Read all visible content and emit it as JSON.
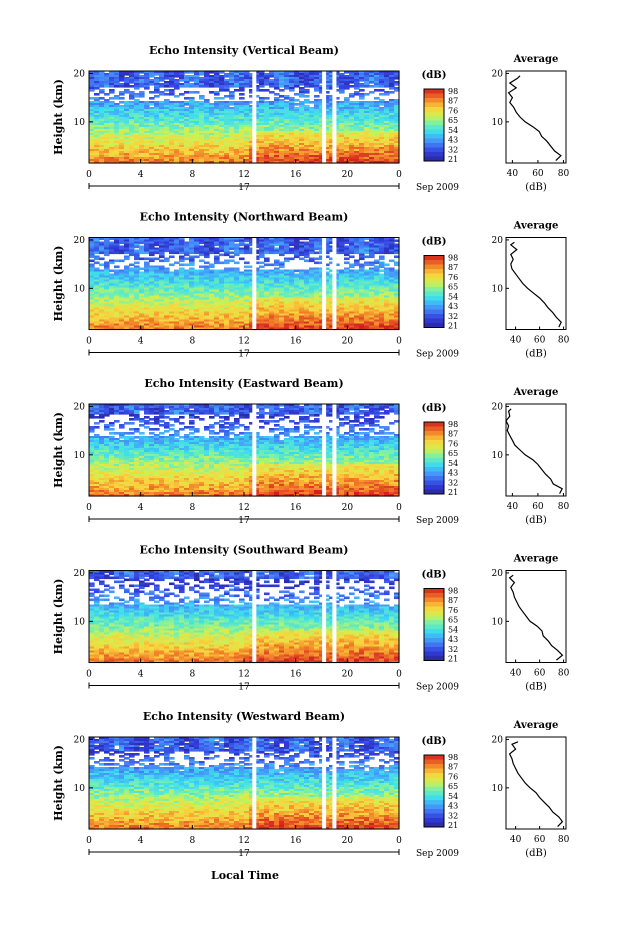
{
  "page": {
    "xlabel": "Local Time",
    "ylabel": "Height (km)",
    "unit": "(dB)",
    "date_label": "Sep 2009",
    "day_label": "17",
    "avg_title": "Average",
    "avg_xlabel": "(dB)"
  },
  "chart_data": [
    {
      "type": "heatmap",
      "title": "Echo Intensity (Vertical Beam)",
      "x_ticks": [
        "0",
        "4",
        "8",
        "12",
        "16",
        "20",
        "0"
      ],
      "y_ticks": [
        "20",
        "10"
      ],
      "xlim": [
        0,
        24
      ],
      "ylim": [
        1.5,
        20.5
      ],
      "colorbar_ticks": [
        "98",
        "87",
        "76",
        "65",
        "54",
        "43",
        "32",
        "21"
      ],
      "colorbar_range": [
        21,
        98
      ],
      "gap_times_h": [
        12.8,
        18.2,
        19.0
      ],
      "clear_band_km": [
        14.5,
        17.0
      ],
      "average_profile": {
        "x_ticks": [
          "40",
          "60",
          "80"
        ],
        "xlim": [
          35,
          82
        ],
        "y_ticks": [
          "20",
          "10"
        ],
        "ylim": [
          1.5,
          20.5
        ],
        "height_km": [
          2,
          3,
          4,
          5,
          6,
          7,
          8,
          9,
          10,
          11,
          12,
          13,
          14,
          15,
          16,
          17,
          18,
          19,
          19.5
        ],
        "value_db": [
          74,
          78,
          73,
          70,
          67,
          63,
          61,
          56,
          50,
          46,
          43,
          41,
          38,
          40,
          37,
          43,
          38,
          44,
          46
        ]
      }
    },
    {
      "type": "heatmap",
      "title": "Echo Intensity (Northward Beam)",
      "x_ticks": [
        "0",
        "4",
        "8",
        "12",
        "16",
        "20",
        "0"
      ],
      "y_ticks": [
        "20",
        "10"
      ],
      "xlim": [
        0,
        24
      ],
      "ylim": [
        1.5,
        20.5
      ],
      "colorbar_ticks": [
        "98",
        "87",
        "76",
        "65",
        "54",
        "43",
        "32",
        "21"
      ],
      "colorbar_range": [
        21,
        98
      ],
      "gap_times_h": [
        12.8,
        18.2,
        19.0
      ],
      "clear_band_km": [
        14.0,
        17.0
      ],
      "average_profile": {
        "x_ticks": [
          "40",
          "60",
          "80"
        ],
        "xlim": [
          32,
          82
        ],
        "y_ticks": [
          "20",
          "10"
        ],
        "ylim": [
          1.5,
          20.5
        ],
        "height_km": [
          2,
          3,
          4,
          5,
          6,
          7,
          8,
          9,
          10,
          11,
          12,
          13,
          14,
          15,
          16,
          17,
          18,
          19,
          19.5
        ],
        "value_db": [
          76,
          78,
          74,
          71,
          67,
          64,
          60,
          55,
          50,
          46,
          43,
          40,
          37,
          36,
          38,
          36,
          41,
          36,
          39
        ]
      }
    },
    {
      "type": "heatmap",
      "title": "Echo Intensity (Eastward Beam)",
      "x_ticks": [
        "0",
        "4",
        "8",
        "12",
        "16",
        "20",
        "0"
      ],
      "y_ticks": [
        "20",
        "10"
      ],
      "xlim": [
        0,
        24
      ],
      "ylim": [
        1.5,
        20.5
      ],
      "colorbar_ticks": [
        "98",
        "87",
        "76",
        "65",
        "54",
        "43",
        "32",
        "21"
      ],
      "colorbar_range": [
        21,
        98
      ],
      "gap_times_h": [
        12.8,
        18.2,
        19.0
      ],
      "clear_band_km": [
        14.0,
        18.5
      ],
      "average_profile": {
        "x_ticks": [
          "40",
          "60",
          "80"
        ],
        "xlim": [
          35,
          82
        ],
        "y_ticks": [
          "20",
          "10"
        ],
        "ylim": [
          1.5,
          20.5
        ],
        "height_km": [
          2,
          3,
          4,
          5,
          6,
          7,
          8,
          9,
          10,
          11,
          12,
          13,
          14,
          15,
          16,
          17,
          18,
          19,
          19.5
        ],
        "value_db": [
          77,
          79,
          72,
          70,
          66,
          63,
          60,
          56,
          50,
          46,
          42,
          40,
          38,
          36,
          37,
          35,
          38,
          37,
          39
        ]
      }
    },
    {
      "type": "heatmap",
      "title": "Echo Intensity (Southward Beam)",
      "x_ticks": [
        "0",
        "4",
        "8",
        "12",
        "16",
        "20",
        "0"
      ],
      "y_ticks": [
        "20",
        "10"
      ],
      "xlim": [
        0,
        24
      ],
      "ylim": [
        1.5,
        20.5
      ],
      "colorbar_ticks": [
        "98",
        "87",
        "76",
        "65",
        "54",
        "43",
        "32",
        "21"
      ],
      "colorbar_range": [
        21,
        98
      ],
      "gap_times_h": [
        12.8,
        18.2,
        19.0
      ],
      "clear_band_km": [
        13.5,
        19.0
      ],
      "average_profile": {
        "x_ticks": [
          "40",
          "60",
          "80"
        ],
        "xlim": [
          32,
          82
        ],
        "y_ticks": [
          "20",
          "10"
        ],
        "ylim": [
          1.5,
          20.5
        ],
        "height_km": [
          2,
          3,
          4,
          5,
          6,
          7,
          8,
          9,
          10,
          11,
          12,
          13,
          14,
          15,
          16,
          17,
          18,
          19,
          19.5
        ],
        "value_db": [
          74,
          79,
          75,
          70,
          67,
          63,
          62,
          58,
          52,
          49,
          46,
          43,
          41,
          39,
          38,
          36,
          39,
          35,
          38
        ]
      }
    },
    {
      "type": "heatmap",
      "title": "Echo Intensity (Westward Beam)",
      "x_ticks": [
        "0",
        "4",
        "8",
        "12",
        "16",
        "20",
        "0"
      ],
      "y_ticks": [
        "20",
        "10"
      ],
      "xlim": [
        0,
        24
      ],
      "ylim": [
        1.5,
        20.5
      ],
      "colorbar_ticks": [
        "98",
        "87",
        "76",
        "65",
        "54",
        "43",
        "32",
        "21"
      ],
      "colorbar_range": [
        21,
        98
      ],
      "gap_times_h": [
        12.8,
        18.2,
        19.0
      ],
      "clear_band_km": [
        14.5,
        17.5
      ],
      "average_profile": {
        "x_ticks": [
          "40",
          "60",
          "80"
        ],
        "xlim": [
          32,
          82
        ],
        "y_ticks": [
          "20",
          "10"
        ],
        "ylim": [
          1.5,
          20.5
        ],
        "height_km": [
          2,
          3,
          4,
          5,
          6,
          7,
          8,
          9,
          10,
          11,
          12,
          13,
          14,
          15,
          16,
          17,
          18,
          19,
          19.5
        ],
        "value_db": [
          75,
          79,
          76,
          71,
          68,
          64,
          60,
          57,
          52,
          48,
          45,
          42,
          40,
          38,
          37,
          35,
          40,
          37,
          42
        ]
      }
    }
  ]
}
